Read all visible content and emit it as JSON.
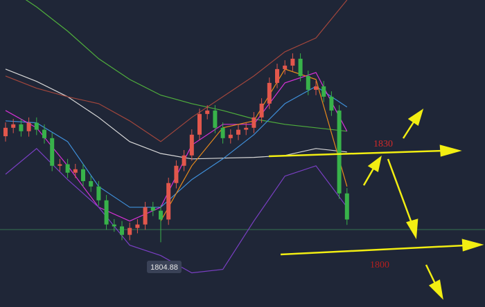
{
  "chart_data": {
    "type": "candlestick",
    "ylim": [
      1788,
      1868
    ],
    "xlim": [
      0,
      44
    ],
    "up_color": "#e2574c",
    "down_color": "#38b24a",
    "ohlc": [
      [
        1832.5,
        1836.1,
        1831.1,
        1834.7
      ],
      [
        1834.7,
        1837.0,
        1833.3,
        1835.6
      ],
      [
        1835.6,
        1837.0,
        1832.4,
        1833.8
      ],
      [
        1833.8,
        1837.4,
        1832.4,
        1836.0
      ],
      [
        1836.0,
        1837.4,
        1832.8,
        1834.2
      ],
      [
        1834.2,
        1835.6,
        1830.6,
        1832.0
      ],
      [
        1832.0,
        1833.4,
        1823.4,
        1824.8
      ],
      [
        1824.8,
        1826.6,
        1823.4,
        1825.2
      ],
      [
        1825.2,
        1826.6,
        1821.6,
        1823.0
      ],
      [
        1823.0,
        1825.3,
        1821.6,
        1823.9
      ],
      [
        1823.9,
        1825.3,
        1819.4,
        1820.8
      ],
      [
        1820.8,
        1822.2,
        1818.0,
        1819.4
      ],
      [
        1819.4,
        1820.8,
        1814.4,
        1815.8
      ],
      [
        1815.8,
        1817.2,
        1808.1,
        1809.5
      ],
      [
        1809.5,
        1810.9,
        1807.6,
        1809.0
      ],
      [
        1809.0,
        1810.4,
        1805.4,
        1806.8
      ],
      [
        1806.8,
        1810.0,
        1805.4,
        1808.6
      ],
      [
        1808.6,
        1810.9,
        1807.2,
        1809.5
      ],
      [
        1809.5,
        1815.4,
        1808.1,
        1814.0
      ],
      [
        1814.0,
        1815.4,
        1811.7,
        1813.1
      ],
      [
        1813.1,
        1814.5,
        1804.88,
        1810.8
      ],
      [
        1810.8,
        1821.7,
        1809.4,
        1820.3
      ],
      [
        1820.3,
        1826.2,
        1818.9,
        1824.8
      ],
      [
        1824.8,
        1828.9,
        1823.4,
        1827.5
      ],
      [
        1827.5,
        1834.3,
        1826.1,
        1832.9
      ],
      [
        1832.9,
        1839.7,
        1831.5,
        1838.3
      ],
      [
        1838.3,
        1840.6,
        1836.9,
        1839.2
      ],
      [
        1839.2,
        1840.6,
        1833.3,
        1834.7
      ],
      [
        1834.7,
        1836.1,
        1830.6,
        1832.0
      ],
      [
        1832.0,
        1834.3,
        1830.6,
        1832.9
      ],
      [
        1832.9,
        1835.6,
        1831.5,
        1834.2
      ],
      [
        1834.2,
        1836.1,
        1832.8,
        1834.7
      ],
      [
        1834.7,
        1838.8,
        1833.3,
        1837.4
      ],
      [
        1837.4,
        1842.4,
        1836.0,
        1841.0
      ],
      [
        1841.0,
        1847.8,
        1839.6,
        1846.4
      ],
      [
        1846.4,
        1851.4,
        1845.0,
        1850.0
      ],
      [
        1850.0,
        1852.3,
        1848.6,
        1850.9
      ],
      [
        1850.9,
        1854.1,
        1849.5,
        1852.7
      ],
      [
        1852.7,
        1854.1,
        1846.8,
        1848.2
      ],
      [
        1848.2,
        1849.6,
        1843.2,
        1844.6
      ],
      [
        1844.6,
        1846.9,
        1843.2,
        1845.5
      ],
      [
        1845.5,
        1846.9,
        1841.4,
        1842.8
      ],
      [
        1842.8,
        1844.2,
        1837.8,
        1839.2
      ],
      [
        1839.2,
        1840.6,
        1816.2,
        1817.6
      ],
      [
        1817.6,
        1819.0,
        1809.4,
        1810.8
      ]
    ],
    "x": [
      0,
      4,
      8,
      12,
      16,
      20,
      24,
      28,
      32,
      36,
      40,
      44
    ],
    "series": [
      {
        "color": "#d9d9d9",
        "values": [
          1850.0,
          1846.8,
          1842.8,
          1837.4,
          1831.1,
          1828.0,
          1826.6,
          1826.8,
          1827.0,
          1827.5,
          1829.3,
          1828.4
        ]
      },
      {
        "color": "#4fae3c",
        "values": [
          1871.6,
          1866.2,
          1859.9,
          1852.7,
          1847.3,
          1843.2,
          1841.0,
          1839.2,
          1837.0,
          1835.6,
          1834.7,
          1833.8
        ]
      },
      {
        "color": "#3f8fd9",
        "values": [
          1836.5,
          1836.0,
          1831.1,
          1819.4,
          1814.0,
          1814.0,
          1821.2,
          1826.6,
          1832.9,
          1841.0,
          1845.5,
          1840.1
        ]
      },
      {
        "color": "#d631d6",
        "values": [
          1839.2,
          1834.7,
          1824.8,
          1814.0,
          1810.4,
          1814.0,
          1830.2,
          1835.6,
          1835.6,
          1846.4,
          1849.1,
          1833.8
        ]
      },
      {
        "color": "#a2463c",
        "values": [
          1848.2,
          1845.0,
          1842.8,
          1841.0,
          1836.5,
          1831.1,
          1837.4,
          1842.8,
          1848.2,
          1854.5,
          1858.1,
          1868.0
        ]
      },
      {
        "color": "#7a3fc4",
        "values": [
          1822.6,
          1829.3,
          1821.2,
          1814.0,
          1804.1,
          1801.4,
          1796.9,
          1797.8,
          1810.4,
          1822.1,
          1824.8,
          1814.0
        ]
      },
      {
        "color": "#e88a1c",
        "values": [
          null,
          null,
          null,
          null,
          null,
          1810.4,
          1824.8,
          1834.7,
          1836.5,
          1850.0,
          1847.3,
          1819.4
        ]
      }
    ],
    "low_label": 1804.88,
    "annotations": [
      "1830",
      "1800"
    ]
  }
}
